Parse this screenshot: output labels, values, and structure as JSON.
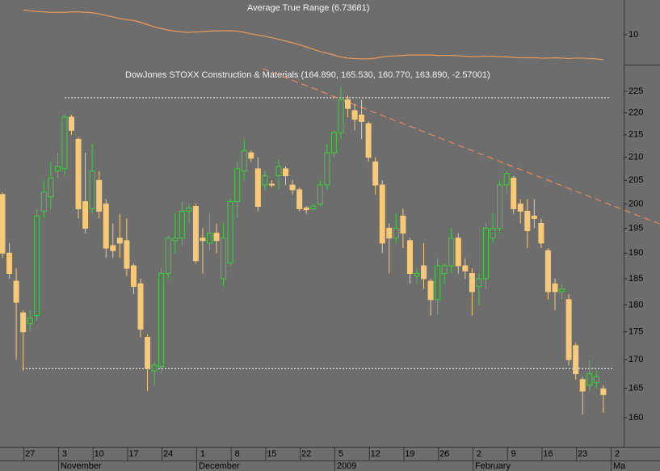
{
  "chart_data": [
    {
      "type": "candlestick",
      "title": "DowJones STOXX Construction & Materials (164.890, 165.530, 160.770, 163.890, -2.57001)",
      "categories": [
        null,
        null,
        null,
        null,
        "27",
        null,
        null,
        null,
        null,
        "3",
        null,
        null,
        null,
        null,
        "10",
        null,
        null,
        null,
        null,
        "17",
        null,
        null,
        null,
        null,
        "24",
        null,
        null,
        null,
        null,
        "1",
        null,
        null,
        null,
        null,
        "8",
        null,
        null,
        null,
        null,
        "15",
        null,
        null,
        null,
        null,
        "22",
        null,
        null,
        null,
        null,
        "5",
        null,
        null,
        null,
        null,
        "12",
        null,
        null,
        null,
        null,
        "19",
        null,
        null,
        null,
        null,
        "26",
        null,
        null,
        null,
        null,
        "2",
        null,
        null,
        null,
        null,
        "9",
        null,
        null,
        null,
        null,
        "16",
        null,
        null,
        null,
        null,
        "23",
        null,
        null,
        null,
        null,
        "2"
      ],
      "category_groups": [
        null,
        null,
        null,
        null,
        null,
        null,
        null,
        null,
        null,
        "November",
        null,
        null,
        null,
        null,
        null,
        null,
        null,
        null,
        null,
        null,
        null,
        null,
        null,
        null,
        null,
        null,
        null,
        null,
        null,
        "December",
        null,
        null,
        null,
        null,
        null,
        null,
        null,
        null,
        null,
        null,
        null,
        null,
        null,
        null,
        null,
        null,
        null,
        null,
        null,
        "2009",
        null,
        null,
        null,
        null,
        null,
        null,
        null,
        null,
        null,
        null,
        null,
        null,
        null,
        null,
        null,
        null,
        null,
        null,
        null,
        "February",
        null,
        null,
        null,
        null,
        null,
        null,
        null,
        null,
        null,
        null,
        null,
        null,
        null,
        null,
        null,
        null,
        null,
        null,
        null,
        "Ma"
      ],
      "open": [
        202,
        190,
        184.5,
        178.5,
        176.5,
        178,
        198.5,
        201.5,
        207,
        207.5,
        219,
        214,
        200.5,
        199,
        205,
        200,
        191.5,
        193,
        192.5,
        187.5,
        184,
        174,
        168,
        168.8,
        186,
        192.5,
        193,
        198.5,
        199.5,
        193,
        192,
        194,
        185,
        188,
        200.5,
        207,
        211,
        207.5,
        204,
        204.2,
        206,
        207.5,
        204,
        203,
        199.2,
        199,
        200,
        204,
        211,
        215.5,
        223,
        220.5,
        219.5,
        217.5,
        209,
        204,
        195,
        193,
        197.5,
        192.5,
        185.5,
        187.5,
        184.5,
        181,
        186,
        187.5,
        193,
        187.5,
        186,
        183.5,
        185,
        193,
        195,
        204,
        205.5,
        200,
        198.5,
        197.5,
        196,
        190.5,
        184,
        182.5,
        181,
        172.5,
        166.5,
        165.5,
        166,
        164.89,
        null,
        null
      ],
      "high": [
        202.5,
        192,
        187,
        179,
        179,
        199,
        205,
        209,
        211,
        219.5,
        219.5,
        214.5,
        211,
        213,
        207,
        201,
        196,
        198,
        197,
        188,
        185,
        174.5,
        169.5,
        187,
        193.5,
        198,
        200.5,
        200,
        200,
        195,
        198,
        196,
        196,
        201,
        209,
        214,
        211.5,
        210,
        207,
        205,
        209.5,
        208,
        205,
        203.5,
        199.5,
        200,
        205,
        213,
        216,
        226,
        224,
        222,
        223,
        218,
        210,
        205,
        196,
        198,
        199,
        193,
        187,
        192,
        185,
        189,
        188,
        195,
        194,
        189,
        187,
        186,
        196,
        198,
        205,
        207,
        206,
        201,
        201,
        201,
        197,
        191,
        185,
        184,
        182,
        173,
        167,
        170,
        168,
        165.53,
        null,
        null
      ],
      "low": [
        189,
        185,
        170,
        168,
        175,
        177,
        197,
        199,
        205.5,
        206,
        215,
        197,
        194,
        198,
        197,
        189,
        189,
        189,
        185.5,
        182,
        174,
        164.5,
        165.5,
        167.5,
        185,
        190,
        191.5,
        196,
        188,
        186,
        190.5,
        190,
        183.5,
        187.5,
        197,
        205,
        209,
        198.5,
        203,
        203.5,
        203,
        204,
        202,
        198.5,
        198,
        198.6,
        199.5,
        203,
        210,
        214,
        219,
        216,
        214,
        209,
        202,
        190,
        186,
        192,
        191,
        184,
        184,
        183,
        178,
        178,
        184,
        186,
        186,
        185,
        178,
        180,
        183,
        192,
        194,
        202,
        198,
        196,
        191,
        195,
        191,
        181,
        179,
        181,
        169,
        166.5,
        160.5,
        164.5,
        165,
        160.77,
        null,
        null
      ],
      "close": [
        190,
        186,
        180.5,
        175,
        177.5,
        197.5,
        202.5,
        205.5,
        208,
        219,
        216,
        199,
        195,
        207,
        198.5,
        191,
        190.5,
        192,
        187,
        183.5,
        175.5,
        168.5,
        169,
        186,
        193,
        193,
        198.5,
        199.2,
        188.5,
        192.5,
        194,
        192.5,
        193,
        200.5,
        207.5,
        211.5,
        209.8,
        199.5,
        206,
        204,
        208,
        206,
        203,
        199,
        198.8,
        199.6,
        204,
        211,
        215.5,
        223,
        221,
        218.5,
        218,
        210,
        204,
        192,
        193,
        195,
        194,
        186,
        186,
        185,
        181,
        187.5,
        187.5,
        193,
        187.5,
        186.5,
        182.5,
        185,
        195,
        195,
        204,
        206.5,
        199,
        198.5,
        194.5,
        197,
        192,
        182.5,
        182.5,
        183,
        170,
        167.5,
        164.5,
        167.5,
        167,
        163.89,
        null,
        null
      ],
      "up_color": "#3ccf3c",
      "down_color": "#f7c978",
      "log_scale": true,
      "ylim": [
        155.2,
        231.35
      ],
      "yticks": [
        160,
        165,
        170,
        175,
        180,
        185,
        190,
        195,
        200,
        205,
        210,
        215,
        220,
        225
      ],
      "levels": [
        223.5,
        168.4
      ],
      "level_color": "#ffffff",
      "trend_line": [
        230.4,
        195.9
      ],
      "trend_color": "#e8875a"
    },
    {
      "type": "line",
      "title": "Average True Range (6.73681)",
      "values": [
        null,
        null,
        null,
        13.2,
        13.1,
        13.0,
        12.95,
        12.9,
        12.9,
        12.9,
        12.95,
        12.95,
        12.9,
        12.85,
        12.7,
        12.5,
        12.3,
        12.1,
        11.95,
        11.85,
        11.6,
        11.3,
        11.0,
        10.8,
        10.6,
        10.45,
        10.35,
        10.3,
        10.35,
        10.4,
        10.45,
        10.5,
        10.5,
        10.5,
        10.45,
        10.3,
        10.1,
        9.95,
        9.8,
        9.6,
        9.4,
        9.15,
        8.95,
        8.7,
        8.4,
        8.1,
        7.8,
        7.6,
        7.35,
        7.1,
        6.95,
        6.9,
        6.85,
        6.85,
        6.95,
        7.1,
        7.2,
        7.25,
        7.3,
        7.35,
        7.35,
        7.35,
        7.35,
        7.3,
        7.3,
        7.3,
        7.25,
        7.2,
        7.15,
        7.15,
        7.2,
        7.2,
        7.15,
        7.1,
        7.05,
        7.0,
        7.0,
        7.0,
        6.95,
        6.95,
        7.0,
        6.95,
        6.9,
        6.95,
        6.95,
        6.9,
        6.85,
        6.73681,
        null,
        null
      ],
      "color": "#e89a5a",
      "ylim": [
        6,
        14.5
      ],
      "yticks": [
        10
      ]
    }
  ]
}
